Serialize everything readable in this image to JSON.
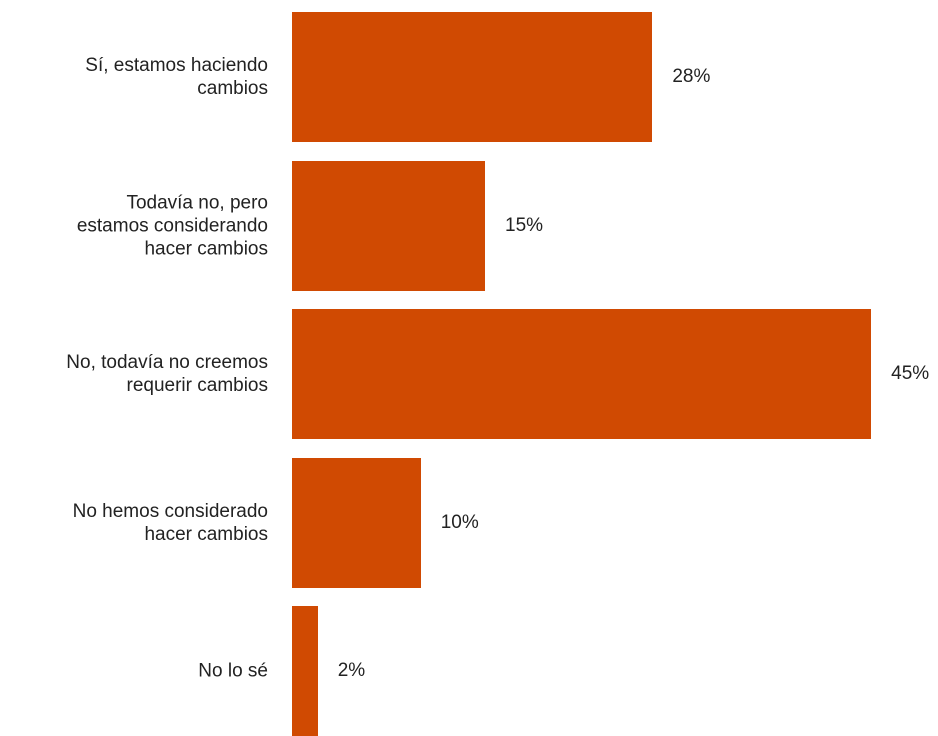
{
  "chart_data": {
    "type": "bar",
    "orientation": "horizontal",
    "categories": [
      "Sí, estamos haciendo\ncambios",
      "Todavía no, pero\nestamos considerando\nhacer cambios",
      "No, todavía no creemos\nrequerir cambios",
      "No hemos considerado\nhacer cambios",
      "No lo sé"
    ],
    "values": [
      28,
      15,
      45,
      10,
      2
    ],
    "value_labels": [
      "28%",
      "15%",
      "45%",
      "10%",
      "2%"
    ],
    "color": "#d04a02"
  }
}
